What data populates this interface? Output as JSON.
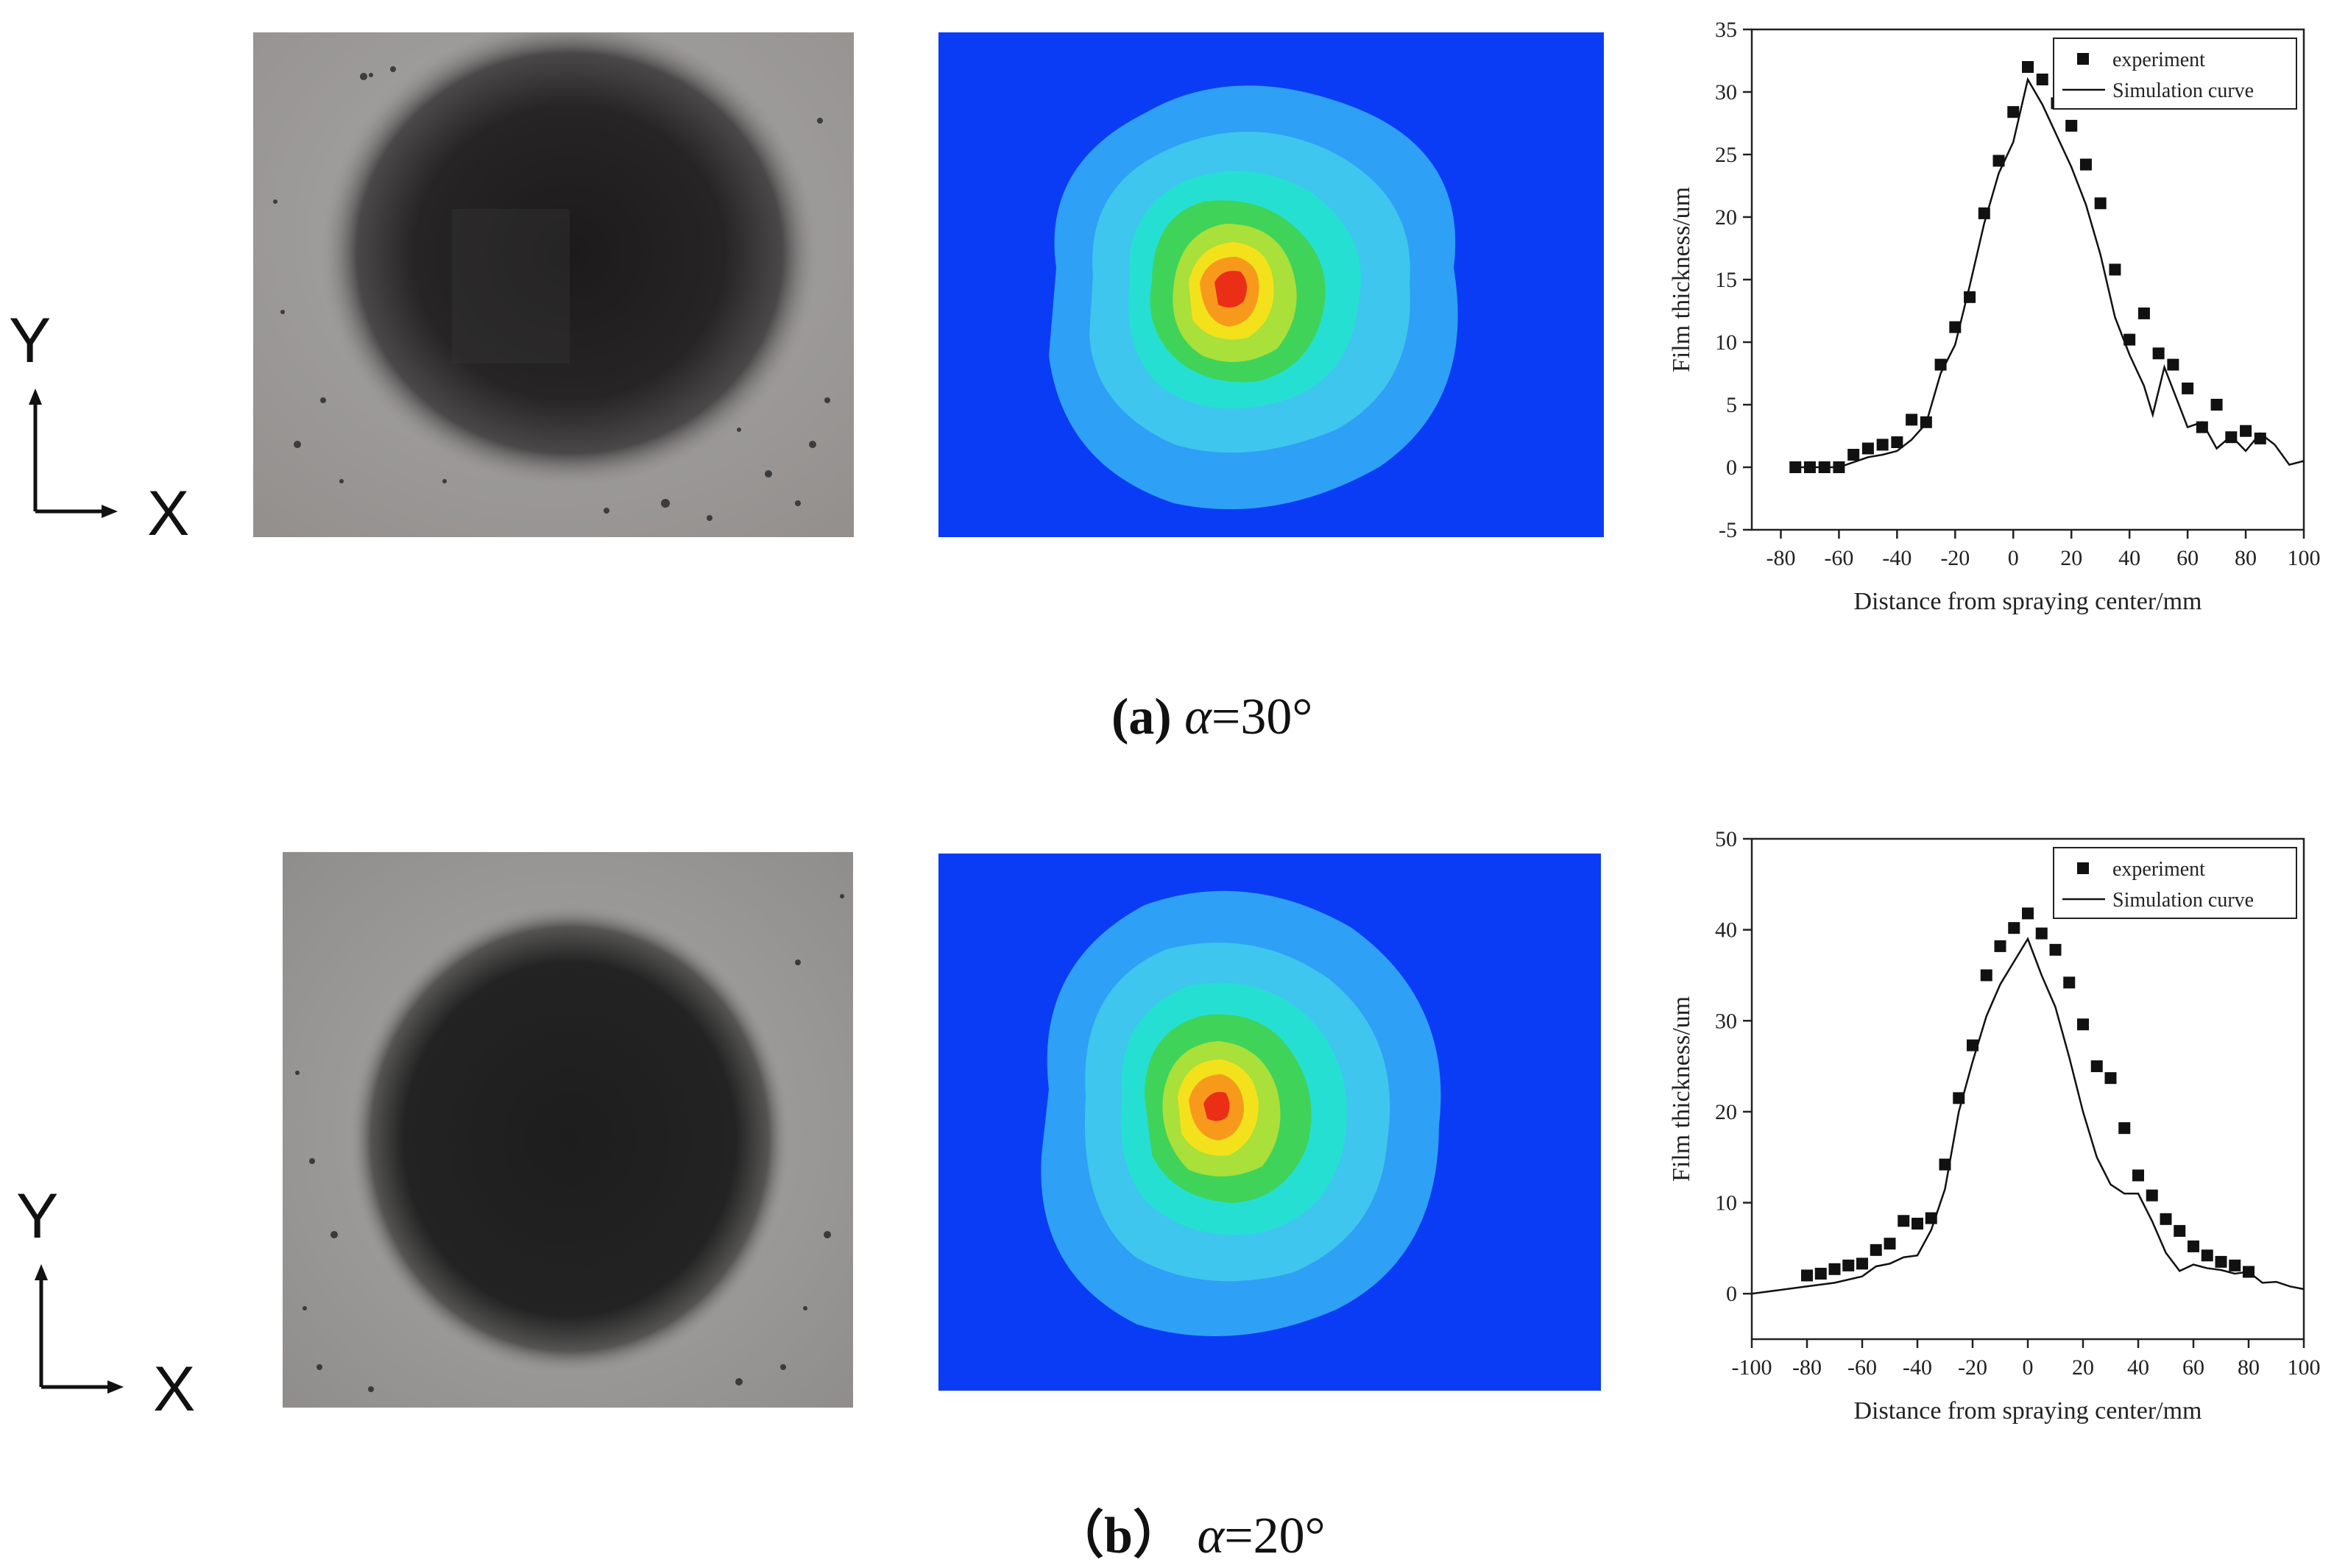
{
  "panels": [
    {
      "caption": {
        "label": "a",
        "open": "(",
        "close": ")",
        "symbol": "α",
        "value": "=30°"
      },
      "axis_letters": {
        "y": "Y",
        "x": "X"
      }
    },
    {
      "caption": {
        "label": "b",
        "open": "（",
        "close": "）",
        "symbol": "α",
        "value": "=20°"
      },
      "axis_letters": {
        "y": "Y",
        "x": "X"
      }
    }
  ],
  "chart_data": [
    {
      "type": "scatter",
      "xlabel": "Distance from spraying center/mm",
      "ylabel": "Film thickness/um",
      "xlim": [
        -90,
        100
      ],
      "ylim": [
        -5,
        35
      ],
      "xticks": [
        -80,
        -60,
        -40,
        -20,
        0,
        20,
        40,
        60,
        80,
        100
      ],
      "yticks": [
        -5,
        0,
        5,
        10,
        15,
        20,
        25,
        30,
        35
      ],
      "legend_position": "top-right",
      "series": [
        {
          "name": "experiment",
          "style": "square-markers",
          "x": [
            -75,
            -70,
            -65,
            -60,
            -55,
            -50,
            -45,
            -40,
            -35,
            -30,
            -25,
            -20,
            -15,
            -10,
            -5,
            0,
            5,
            10,
            15,
            20,
            25,
            30,
            35,
            40,
            45,
            50,
            55,
            60,
            65,
            70,
            75,
            80,
            85
          ],
          "y": [
            0,
            0,
            0,
            0,
            1,
            1.5,
            1.8,
            2,
            3.8,
            3.6,
            8.2,
            11.2,
            13.6,
            20.3,
            24.5,
            28.4,
            32,
            31,
            29.1,
            27.3,
            24.2,
            21.1,
            15.8,
            10.2,
            12.3,
            9.1,
            8.2,
            6.3,
            3.2,
            5,
            2.4,
            2.9,
            2.3
          ]
        },
        {
          "name": "Simulation curve",
          "style": "line",
          "x": [
            -75,
            -60,
            -55,
            -50,
            -45,
            -40,
            -35,
            -30,
            -25,
            -20,
            -15,
            -10,
            -5,
            0,
            5,
            10,
            15,
            20,
            25,
            30,
            35,
            40,
            45,
            48,
            52,
            55,
            60,
            65,
            70,
            75,
            80,
            85,
            90,
            95,
            100
          ],
          "y": [
            0,
            0,
            0.4,
            0.8,
            1,
            1.3,
            2.2,
            3.5,
            7.5,
            9.8,
            14.5,
            19.5,
            23.5,
            26,
            31,
            29,
            26.5,
            24,
            21,
            17,
            12,
            9,
            6.5,
            4.2,
            8,
            6.2,
            3.2,
            3.6,
            1.5,
            2.5,
            1.3,
            2.7,
            1.8,
            0.2,
            0.5
          ]
        }
      ]
    },
    {
      "type": "scatter",
      "xlabel": "Distance from spraying center/mm",
      "ylabel": "Film thickness/um",
      "xlim": [
        -100,
        100
      ],
      "ylim": [
        -5,
        50
      ],
      "xticks": [
        -100,
        -80,
        -60,
        -40,
        -20,
        0,
        20,
        40,
        60,
        80,
        100
      ],
      "yticks": [
        0,
        10,
        20,
        30,
        40,
        50
      ],
      "legend_position": "top-right",
      "series": [
        {
          "name": "experiment",
          "style": "square-markers",
          "x": [
            -80,
            -75,
            -70,
            -65,
            -60,
            -55,
            -50,
            -45,
            -40,
            -35,
            -30,
            -25,
            -20,
            -15,
            -10,
            -5,
            0,
            5,
            10,
            15,
            20,
            25,
            30,
            35,
            40,
            45,
            50,
            55,
            60,
            65,
            70,
            75,
            80
          ],
          "y": [
            2,
            2.2,
            2.7,
            3.1,
            3.3,
            4.8,
            5.5,
            8,
            7.7,
            8.3,
            14.2,
            21.5,
            27.3,
            35,
            38.2,
            40.2,
            41.8,
            39.6,
            37.8,
            34.2,
            29.6,
            25,
            23.7,
            18.2,
            13,
            10.8,
            8.2,
            6.9,
            5.2,
            4.2,
            3.5,
            3.1,
            2.4
          ]
        },
        {
          "name": "Simulation curve",
          "style": "line",
          "x": [
            -100,
            -80,
            -70,
            -60,
            -55,
            -50,
            -45,
            -40,
            -35,
            -30,
            -25,
            -20,
            -15,
            -10,
            -5,
            0,
            5,
            10,
            15,
            20,
            25,
            30,
            35,
            40,
            45,
            50,
            55,
            60,
            65,
            70,
            75,
            80,
            85,
            90,
            95,
            100
          ],
          "y": [
            0,
            0.8,
            1.2,
            1.9,
            3,
            3.3,
            4,
            4.2,
            7,
            11.5,
            20,
            25.5,
            30.5,
            34,
            36.5,
            39,
            35,
            31.5,
            26,
            20,
            15,
            12,
            11,
            11,
            8,
            4.5,
            2.5,
            3.2,
            2.8,
            2.6,
            2.2,
            2.4,
            1.2,
            1.3,
            0.8,
            0.5
          ]
        }
      ]
    }
  ]
}
